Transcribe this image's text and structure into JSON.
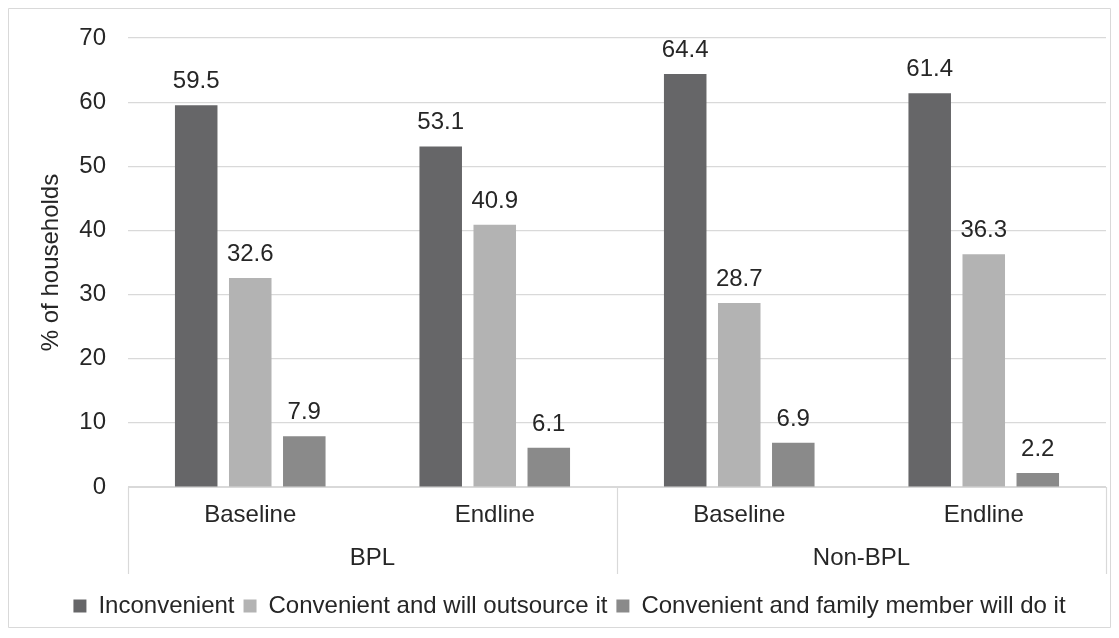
{
  "chart_data": {
    "type": "bar",
    "ylabel": "% of households",
    "categories": [
      "Baseline",
      "Endline",
      "Baseline",
      "Endline"
    ],
    "annotations": [
      "BPL",
      "Non-BPL"
    ],
    "series": [
      {
        "name": "Inconvenient",
        "color": "#666668",
        "values": [
          59.5,
          53.1,
          64.4,
          61.4
        ]
      },
      {
        "name": "Convenient and will outsource it",
        "color": "#b3b3b3",
        "values": [
          32.6,
          40.9,
          28.7,
          36.3
        ]
      },
      {
        "name": "Convenient and family member will do it",
        "color": "#8a8a8a",
        "values": [
          7.9,
          6.1,
          6.9,
          2.2
        ]
      }
    ],
    "ylim": [
      0,
      70
    ],
    "yticks": [
      0,
      10,
      20,
      30,
      40,
      50,
      60,
      70
    ],
    "grid": "y",
    "legend": "bottom",
    "data_labels": true
  }
}
